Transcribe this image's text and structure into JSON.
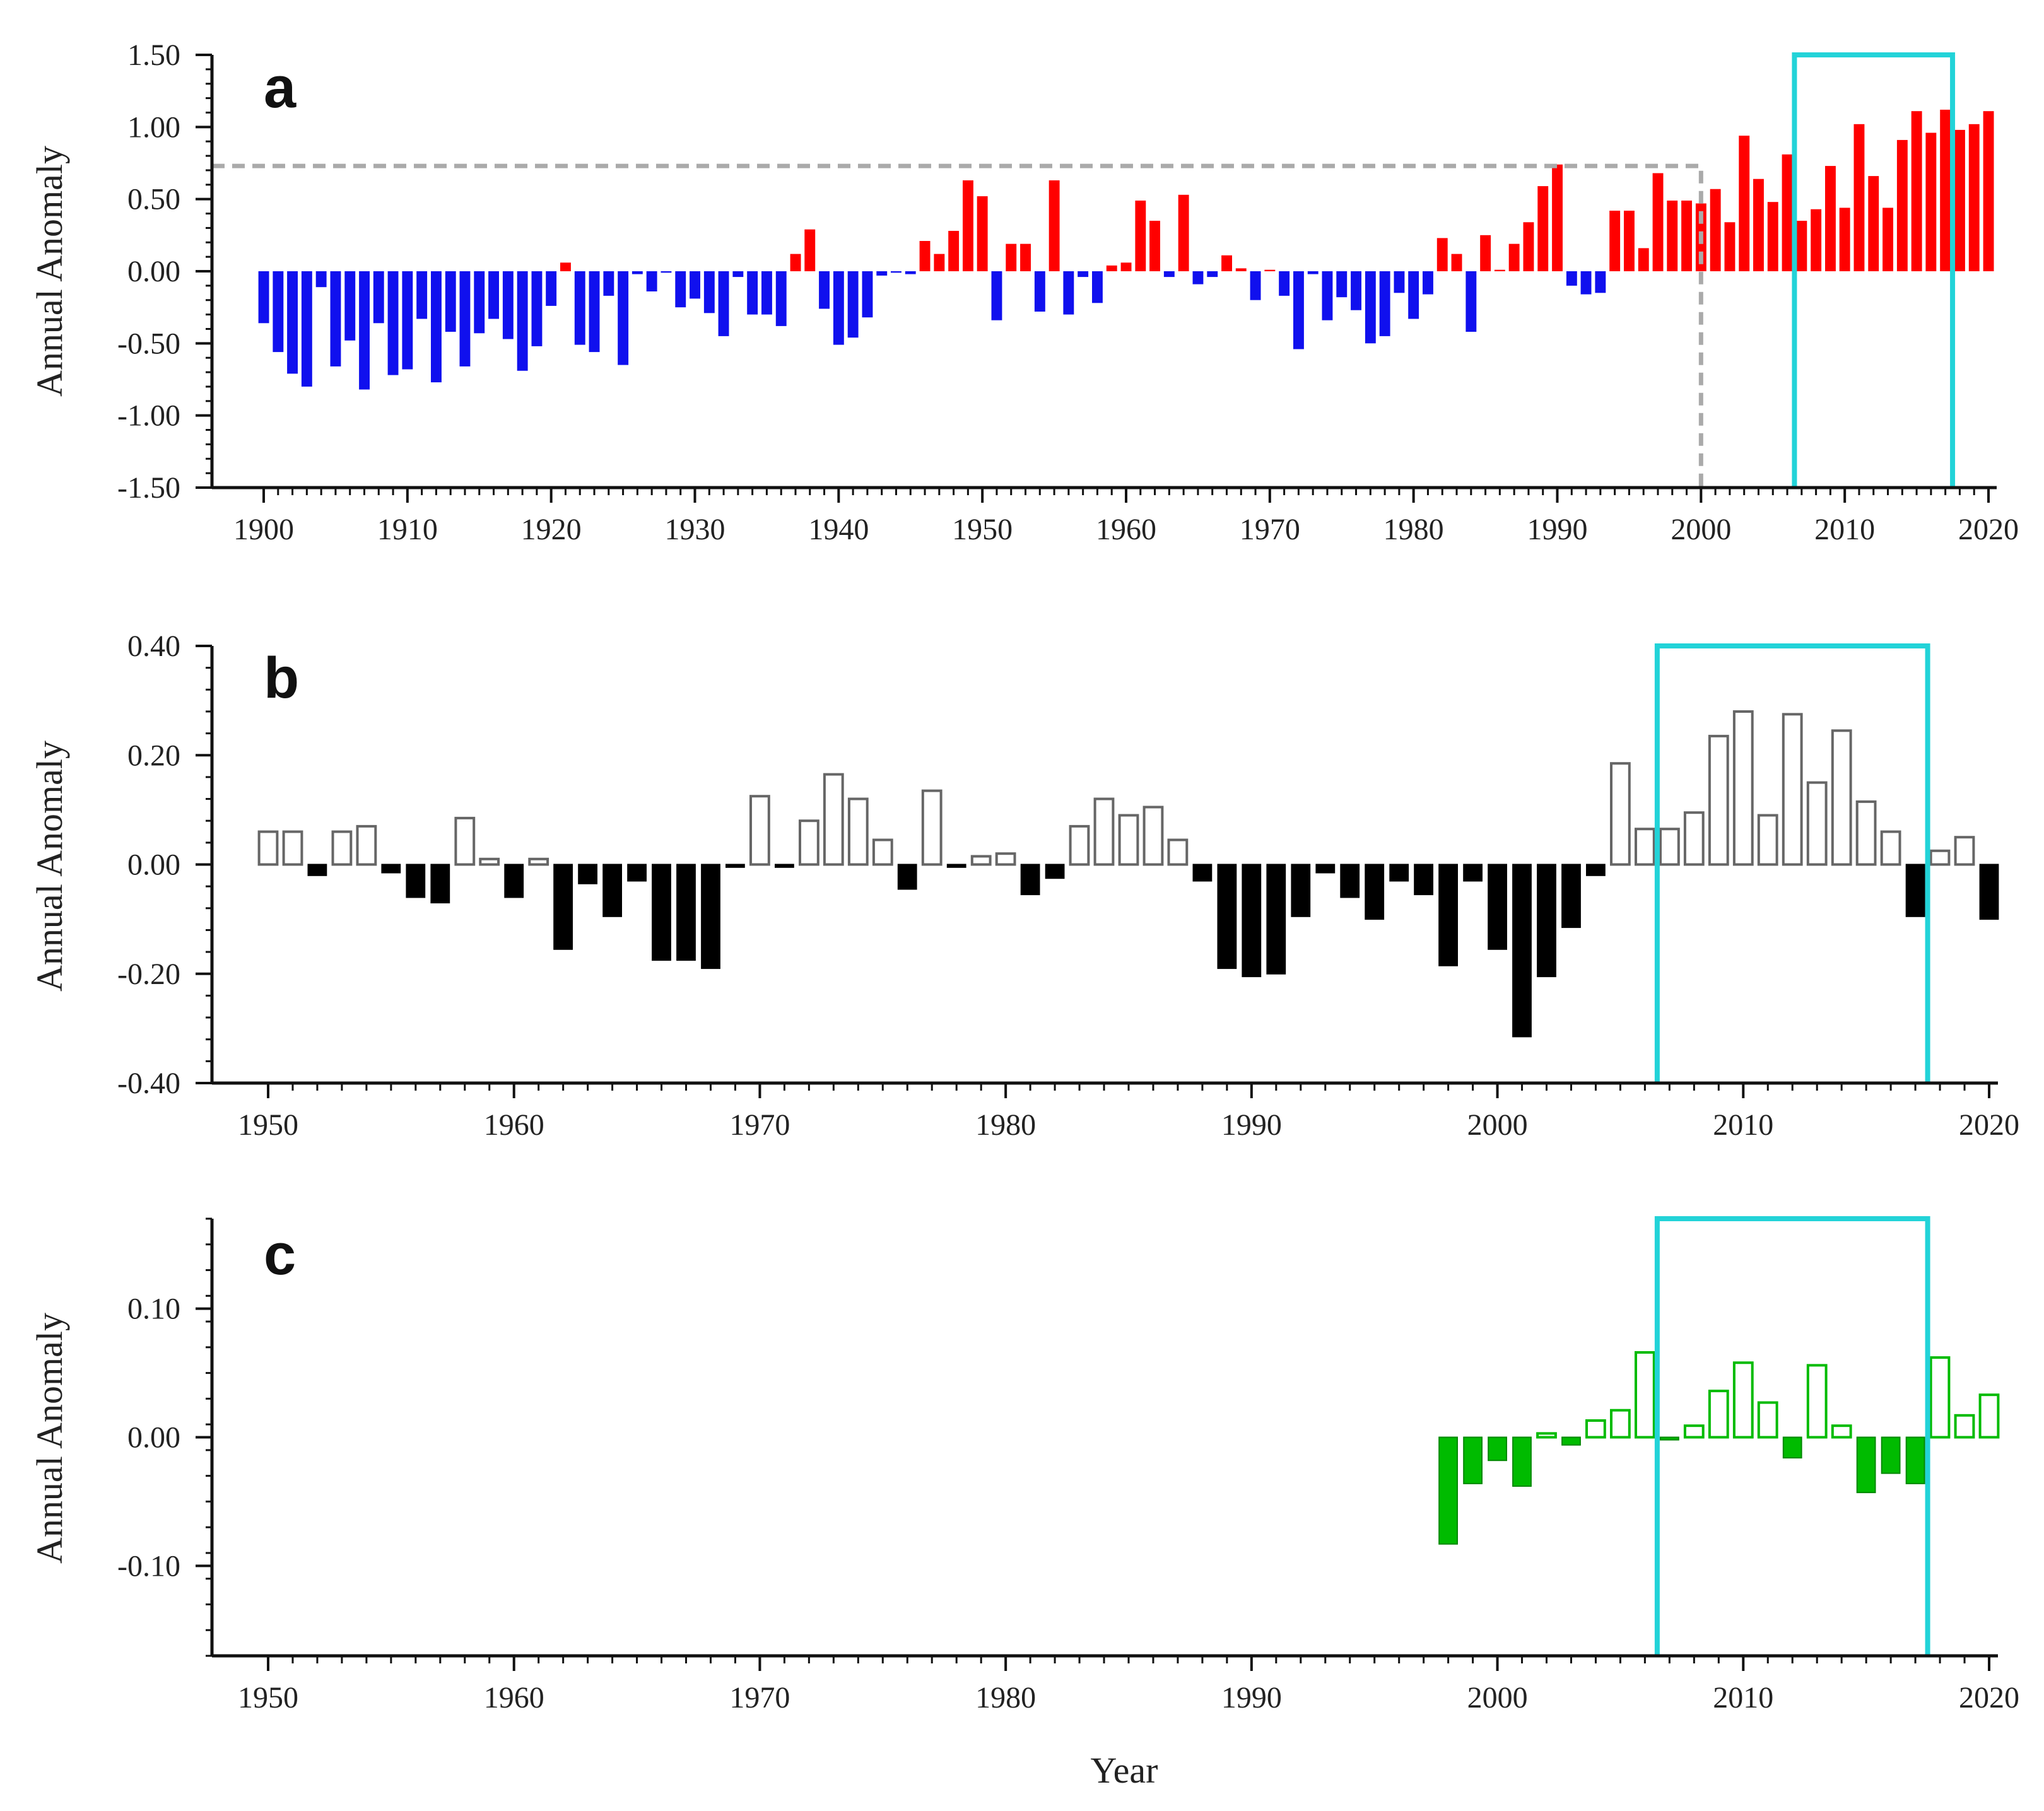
{
  "figure_label": "Annual anomaly bar charts",
  "colors": {
    "positive_a": "#ff0000",
    "negative_a": "#1010ee",
    "negative_b": "#000000",
    "positive_b_outline": "#666666",
    "green": "#00bb00",
    "bracket": "#22d3d8",
    "dashed": "#aaaaaa",
    "axis": "#111111"
  },
  "chart_data": [
    {
      "type": "bar",
      "panel": "a",
      "title": "",
      "xlabel": "",
      "ylabel": "Annual Anomaly",
      "xlim": [
        1900,
        2020
      ],
      "ylim": [
        -1.5,
        1.5
      ],
      "x_ticks": [
        1900,
        1910,
        1920,
        1930,
        1940,
        1950,
        1960,
        1970,
        1980,
        1990,
        2000,
        2010,
        2020
      ],
      "y_ticks": [
        -1.5,
        -1.0,
        -0.5,
        0.0,
        0.5,
        1.0,
        1.5
      ],
      "y_tick_labels": [
        "-1.50",
        "-1.00",
        "-0.50",
        "0.00",
        "0.50",
        "1.00",
        "1.50"
      ],
      "years_start": 1900,
      "values": [
        -0.36,
        -0.56,
        -0.71,
        -0.8,
        -0.11,
        -0.66,
        -0.48,
        -0.82,
        -0.36,
        -0.72,
        -0.68,
        -0.33,
        -0.77,
        -0.42,
        -0.66,
        -0.43,
        -0.33,
        -0.47,
        -0.69,
        -0.52,
        -0.24,
        0.06,
        -0.51,
        -0.56,
        -0.17,
        -0.65,
        -0.02,
        -0.14,
        -0.01,
        -0.25,
        -0.19,
        -0.29,
        -0.45,
        -0.04,
        -0.3,
        -0.3,
        -0.38,
        0.12,
        0.29,
        -0.26,
        -0.51,
        -0.46,
        -0.32,
        -0.03,
        -0.01,
        -0.02,
        0.21,
        0.12,
        0.28,
        0.63,
        0.52,
        -0.34,
        0.19,
        0.19,
        -0.28,
        0.63,
        -0.3,
        -0.04,
        -0.22,
        0.04,
        0.06,
        0.49,
        0.35,
        -0.04,
        0.53,
        -0.09,
        -0.04,
        0.11,
        0.02,
        -0.2,
        0.01,
        -0.17,
        -0.54,
        -0.02,
        -0.34,
        -0.18,
        -0.27,
        -0.5,
        -0.45,
        -0.15,
        -0.33,
        -0.16,
        0.23,
        0.12,
        -0.42,
        0.25,
        0.01,
        0.19,
        0.34,
        0.59,
        0.74,
        -0.1,
        -0.16,
        -0.15,
        0.42,
        0.42,
        0.16,
        0.68,
        0.49,
        0.49,
        0.47,
        0.57,
        0.34,
        0.94,
        0.64,
        0.48,
        0.81,
        0.35,
        0.43,
        0.73,
        0.44,
        1.02,
        0.66,
        0.44,
        0.91,
        1.11,
        0.96,
        1.12,
        0.98,
        1.02,
        1.11
      ],
      "reference_line": {
        "value": 0.73,
        "until_year": 2000
      },
      "highlight_bracket": {
        "from_year": 2006,
        "to_year": 2017
      }
    },
    {
      "type": "bar",
      "panel": "b",
      "title": "",
      "xlabel": "",
      "ylabel": "Annual Anomaly",
      "xlim": [
        1950,
        2020
      ],
      "ylim": [
        -0.4,
        0.4
      ],
      "x_ticks": [
        1950,
        1960,
        1970,
        1980,
        1990,
        2000,
        2010,
        2020
      ],
      "y_ticks": [
        -0.4,
        -0.2,
        0.0,
        0.2,
        0.4
      ],
      "y_tick_labels": [
        "-0.40",
        "-0.20",
        "0.00",
        "0.20",
        "0.40"
      ],
      "years_start": 1950,
      "values": [
        0.06,
        0.06,
        -0.02,
        0.06,
        0.07,
        -0.015,
        -0.06,
        -0.07,
        0.085,
        0.01,
        -0.06,
        0.01,
        -0.155,
        -0.035,
        -0.095,
        -0.03,
        -0.175,
        -0.175,
        -0.19,
        -0.005,
        0.125,
        -0.005,
        0.08,
        0.165,
        0.12,
        0.045,
        -0.045,
        0.135,
        -0.005,
        0.015,
        0.02,
        -0.055,
        -0.025,
        0.07,
        0.12,
        0.09,
        0.105,
        0.045,
        -0.03,
        -0.19,
        -0.205,
        -0.2,
        -0.095,
        -0.015,
        -0.06,
        -0.1,
        -0.03,
        -0.055,
        -0.185,
        -0.03,
        -0.155,
        -0.315,
        -0.205,
        -0.115,
        -0.02,
        0.185,
        0.065,
        0.065,
        0.095,
        0.235,
        0.28,
        0.09,
        0.275,
        0.15,
        0.245,
        0.115,
        0.06,
        -0.095,
        0.025,
        0.05,
        -0.1
      ],
      "highlight_bracket": {
        "from_year": 2006,
        "to_year": 2017
      }
    },
    {
      "type": "bar",
      "panel": "c",
      "title": "",
      "xlabel": "Year",
      "ylabel": "Annual Anomaly",
      "xlim": [
        1950,
        2020
      ],
      "ylim": [
        -0.17,
        0.17
      ],
      "x_ticks": [
        1950,
        1960,
        1970,
        1980,
        1990,
        2000,
        2010,
        2020
      ],
      "y_ticks": [
        -0.1,
        0.0,
        0.1
      ],
      "y_tick_labels": [
        "-0.10",
        "0.00",
        "0.10"
      ],
      "years_start": 1998,
      "values": [
        -0.083,
        -0.036,
        -0.018,
        -0.038,
        0.003,
        -0.006,
        0.013,
        0.021,
        0.066,
        -0.002,
        0.009,
        0.036,
        0.058,
        0.027,
        -0.016,
        0.056,
        0.009,
        -0.043,
        -0.028,
        -0.036,
        0.062,
        0.017,
        0.033
      ],
      "highlight_bracket": {
        "from_year": 2006,
        "to_year": 2017
      }
    }
  ]
}
